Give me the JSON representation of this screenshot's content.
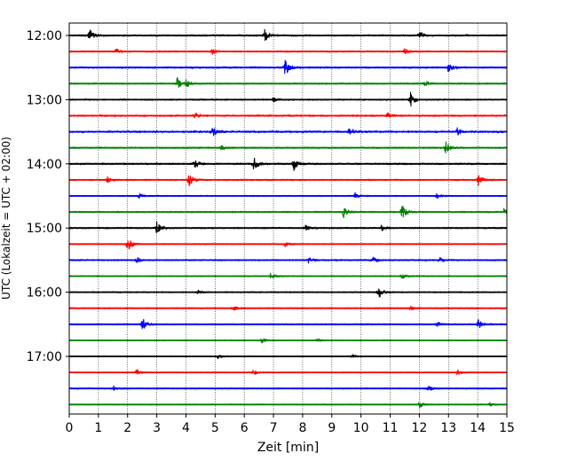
{
  "chart_data": {
    "type": "line",
    "xlabel": "Zeit  [min]",
    "ylabel": "UTC (Lokalzeit = UTC + 02:00)",
    "xlim": [
      0,
      15
    ],
    "xticks": [
      "0",
      "1",
      "2",
      "3",
      "4",
      "5",
      "6",
      "7",
      "8",
      "9",
      "10",
      "11",
      "12",
      "13",
      "14",
      "15"
    ],
    "yticks": [
      {
        "label": "12:00",
        "trace": 0
      },
      {
        "label": "13:00",
        "trace": 4
      },
      {
        "label": "14:00",
        "trace": 8
      },
      {
        "label": "15:00",
        "trace": 12
      },
      {
        "label": "16:00",
        "trace": 16
      },
      {
        "label": "17:00",
        "trace": 20
      }
    ],
    "grid": "vertical dotted",
    "trace_interval_min": 15,
    "colors": [
      "#000000",
      "#ff0000",
      "#0000ff",
      "#008000"
    ],
    "traces": [
      {
        "start": "12:00",
        "noise": 0.35,
        "events": [
          [
            0.7,
            1.0
          ],
          [
            6.7,
            1.0
          ],
          [
            12.0,
            0.6
          ]
        ]
      },
      {
        "start": "12:15",
        "noise": 0.3,
        "events": [
          [
            1.6,
            0.4
          ],
          [
            4.9,
            0.4
          ],
          [
            11.5,
            0.5
          ]
        ]
      },
      {
        "start": "12:30",
        "noise": 0.35,
        "events": [
          [
            7.4,
            1.3
          ],
          [
            13.0,
            0.8
          ]
        ]
      },
      {
        "start": "12:45",
        "noise": 0.3,
        "events": [
          [
            3.7,
            1.2
          ],
          [
            4.0,
            0.5
          ],
          [
            12.2,
            0.4
          ]
        ]
      },
      {
        "start": "13:00",
        "noise": 0.3,
        "events": [
          [
            11.7,
            1.0
          ],
          [
            7.0,
            0.4
          ]
        ]
      },
      {
        "start": "13:15",
        "noise": 0.35,
        "events": [
          [
            4.3,
            0.4
          ],
          [
            10.9,
            0.4
          ]
        ]
      },
      {
        "start": "13:30",
        "noise": 0.4,
        "events": [
          [
            4.9,
            0.9
          ],
          [
            9.6,
            0.6
          ],
          [
            13.3,
            0.5
          ]
        ]
      },
      {
        "start": "13:45",
        "noise": 0.3,
        "events": [
          [
            12.9,
            1.0
          ],
          [
            5.2,
            0.4
          ]
        ]
      },
      {
        "start": "14:00",
        "noise": 0.35,
        "events": [
          [
            4.3,
            0.8
          ],
          [
            6.3,
            1.3
          ],
          [
            7.7,
            0.9
          ]
        ]
      },
      {
        "start": "14:15",
        "noise": 0.3,
        "events": [
          [
            4.1,
            1.0
          ],
          [
            14.0,
            1.0
          ],
          [
            1.3,
            0.4
          ]
        ]
      },
      {
        "start": "14:30",
        "noise": 0.25,
        "events": [
          [
            2.4,
            0.4
          ],
          [
            9.8,
            0.4
          ],
          [
            12.6,
            0.4
          ]
        ]
      },
      {
        "start": "14:45",
        "noise": 0.3,
        "events": [
          [
            9.4,
            0.8
          ],
          [
            11.4,
            1.2
          ],
          [
            14.9,
            0.5
          ]
        ]
      },
      {
        "start": "15:00",
        "noise": 0.3,
        "events": [
          [
            3.0,
            1.0
          ],
          [
            8.1,
            0.4
          ],
          [
            10.7,
            0.4
          ]
        ]
      },
      {
        "start": "15:15",
        "noise": 0.2,
        "events": [
          [
            2.0,
            1.2
          ],
          [
            7.4,
            0.4
          ]
        ]
      },
      {
        "start": "15:30",
        "noise": 0.3,
        "events": [
          [
            2.3,
            0.4
          ],
          [
            8.2,
            0.4
          ],
          [
            10.4,
            0.5
          ],
          [
            12.7,
            0.4
          ]
        ]
      },
      {
        "start": "15:45",
        "noise": 0.25,
        "events": [
          [
            6.9,
            0.4
          ],
          [
            11.4,
            0.4
          ]
        ]
      },
      {
        "start": "16:00",
        "noise": 0.25,
        "events": [
          [
            10.6,
            1.1
          ],
          [
            4.4,
            0.4
          ]
        ]
      },
      {
        "start": "16:15",
        "noise": 0.25,
        "events": [
          [
            5.6,
            0.4
          ],
          [
            11.7,
            0.3
          ]
        ]
      },
      {
        "start": "16:30",
        "noise": 0.25,
        "events": [
          [
            2.5,
            1.0
          ],
          [
            14.0,
            1.0
          ],
          [
            12.6,
            0.4
          ]
        ]
      },
      {
        "start": "16:45",
        "noise": 0.2,
        "events": [
          [
            6.6,
            0.4
          ],
          [
            8.5,
            0.3
          ]
        ]
      },
      {
        "start": "17:00",
        "noise": 0.2,
        "events": [
          [
            5.1,
            0.4
          ],
          [
            9.7,
            0.3
          ]
        ]
      },
      {
        "start": "17:15",
        "noise": 0.2,
        "events": [
          [
            2.3,
            0.5
          ],
          [
            6.3,
            0.4
          ],
          [
            13.3,
            0.4
          ]
        ]
      },
      {
        "start": "17:30",
        "noise": 0.25,
        "events": [
          [
            1.5,
            0.4
          ],
          [
            12.3,
            0.4
          ]
        ]
      },
      {
        "start": "17:45",
        "noise": 0.2,
        "events": [
          [
            12.0,
            0.5
          ],
          [
            14.4,
            0.3
          ]
        ]
      }
    ]
  }
}
